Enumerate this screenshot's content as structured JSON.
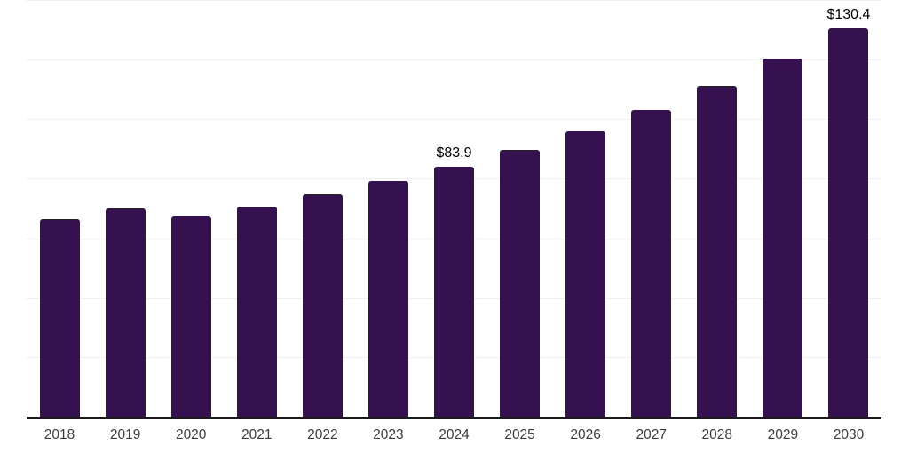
{
  "chart_data": {
    "type": "bar",
    "title": "",
    "xlabel": "",
    "ylabel": "",
    "categories": [
      "2018",
      "2019",
      "2020",
      "2021",
      "2022",
      "2023",
      "2024",
      "2025",
      "2026",
      "2027",
      "2028",
      "2029",
      "2030"
    ],
    "values": [
      66.4,
      70.1,
      67.2,
      70.6,
      74.8,
      79.2,
      83.9,
      89.6,
      95.8,
      103.0,
      111.1,
      120.4,
      130.4
    ],
    "data_labels": {
      "2024": "$83.9",
      "2030": "$130.4"
    },
    "ylim": [
      0,
      140
    ],
    "gridlines": [
      20,
      40,
      60,
      80,
      100,
      120,
      140
    ],
    "grid": "horizontal-only",
    "legend": "none",
    "y_axis_tick_labels": "none",
    "colors": {
      "bar": "#351150",
      "axis_line": "#1a1a1a",
      "gridline": "#f0f0f0",
      "tick_label": "#3c3c3c",
      "data_label": "#000000"
    }
  }
}
